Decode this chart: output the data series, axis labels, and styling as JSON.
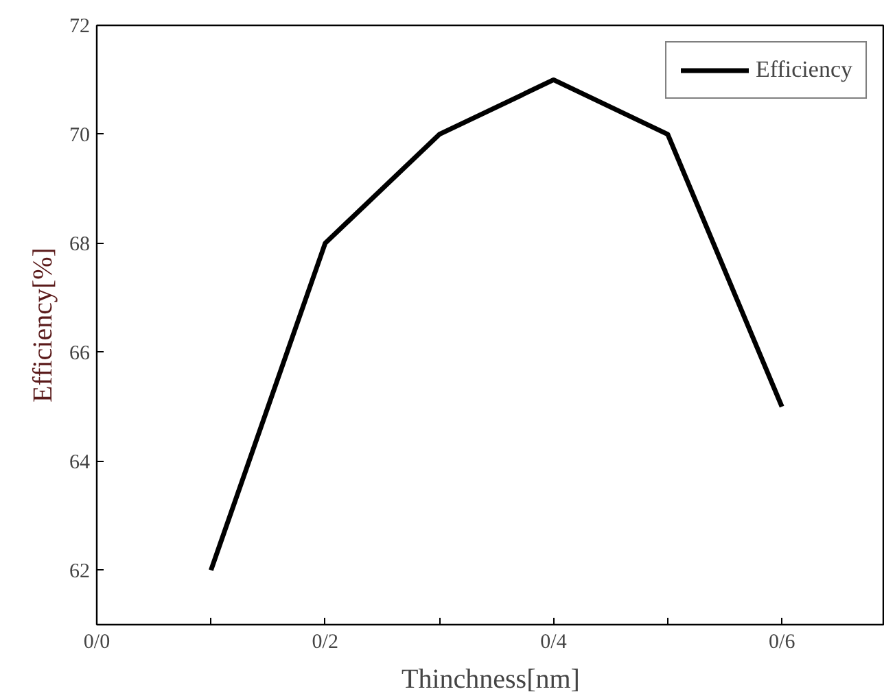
{
  "chart_data": {
    "type": "line",
    "xlabel": "Thinchness[nm]",
    "ylabel": "Efficiency[%]",
    "categories": [
      "0/0",
      null,
      "0/2",
      null,
      "0/4",
      null,
      "0/6"
    ],
    "series": [
      {
        "name": "Efficiency",
        "color": "#000000",
        "values": [
          null,
          62,
          68,
          70,
          71,
          70,
          65
        ]
      }
    ],
    "ylim": [
      61,
      72
    ],
    "yticks": [
      62,
      64,
      66,
      68,
      70,
      72
    ],
    "grid": false,
    "legend": "top right",
    "marker": "none",
    "line_style": "solid"
  }
}
